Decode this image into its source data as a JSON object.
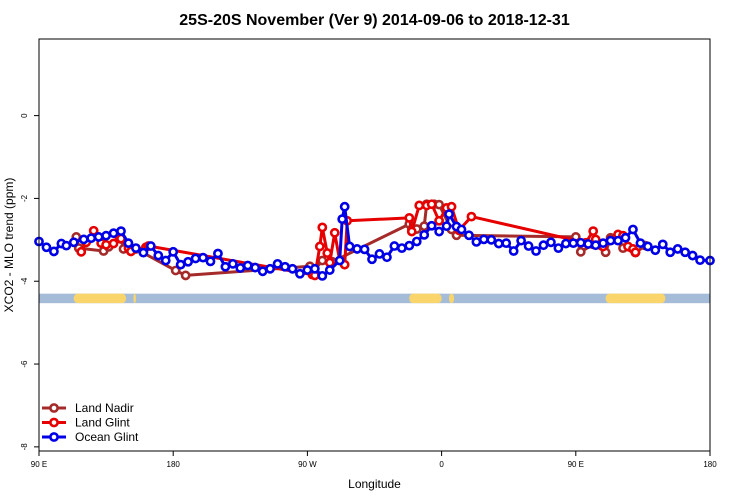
{
  "chart_data": {
    "type": "line",
    "title": "25S-20S November (Ver 9)   2014-09-06 to 2018-12-31",
    "xlabel": "Longitude",
    "ylabel": "XCO2 - MLO trend (ppm)",
    "xlim": [
      -90,
      180
    ],
    "ylim": [
      -8.1,
      1.85
    ],
    "x_ticks": [
      {
        "value": -90,
        "label": "90 E"
      },
      {
        "value": -36,
        "label": "180"
      },
      {
        "value": 18,
        "label": "90 W"
      },
      {
        "value": 72,
        "label": "0"
      },
      {
        "value": 126,
        "label": "90 E"
      },
      {
        "value": 180,
        "label": "180"
      }
    ],
    "y_ticks": [
      {
        "value": 0,
        "label": "0"
      },
      {
        "value": -2,
        "label": "-2"
      },
      {
        "value": -4,
        "label": "-4"
      },
      {
        "value": -6,
        "label": "-6"
      },
      {
        "value": -8,
        "label": "-8"
      }
    ],
    "land_mask": {
      "y_top": -4.3,
      "y_bottom": -4.53,
      "ocean_color": "#a5bcd9",
      "land_color": "#fad56b",
      "land_segments": [
        [
          -76,
          -55
        ],
        [
          -52,
          -51
        ],
        [
          59,
          72
        ],
        [
          75,
          77
        ],
        [
          138,
          162
        ]
      ]
    },
    "series": [
      {
        "name": "Land Nadir",
        "color": "#a52a2a",
        "points": [
          [
            -75,
            -2.93
          ],
          [
            -74,
            -3.2
          ],
          [
            -64,
            -3.27
          ],
          [
            -62,
            -3.17
          ],
          [
            -57,
            -2.98
          ],
          [
            -56,
            -3.22
          ],
          [
            -51,
            -3.22
          ],
          [
            -35,
            -3.74
          ],
          [
            -31,
            -3.86
          ],
          [
            19,
            -3.64
          ],
          [
            20,
            -3.79
          ],
          [
            24,
            -3.5
          ],
          [
            28,
            -3.53
          ],
          [
            59,
            -2.62
          ],
          [
            60,
            -2.74
          ],
          [
            62,
            -2.74
          ],
          [
            65,
            -2.67
          ],
          [
            66,
            -2.14
          ],
          [
            69,
            -2.14
          ],
          [
            71,
            -2.15
          ],
          [
            76,
            -2.75
          ],
          [
            78,
            -2.89
          ],
          [
            126,
            -2.93
          ],
          [
            128,
            -3.29
          ],
          [
            133,
            -3.11
          ],
          [
            138,
            -3.3
          ],
          [
            140,
            -2.95
          ],
          [
            143,
            -2.9
          ],
          [
            145,
            -3.2
          ],
          [
            150,
            -3.31
          ],
          [
            154,
            -3.14
          ]
        ]
      },
      {
        "name": "Land Glint",
        "color": "#e60000",
        "points": [
          [
            -73,
            -3.29
          ],
          [
            -71,
            -3.06
          ],
          [
            -68,
            -2.78
          ],
          [
            -65,
            -3.08
          ],
          [
            -63,
            -3.12
          ],
          [
            -60,
            -3.09
          ],
          [
            -58,
            -2.9
          ],
          [
            -57,
            -2.97
          ],
          [
            -54,
            -3.2
          ],
          [
            -53,
            -3.28
          ],
          [
            -47,
            -3.18
          ],
          [
            -46,
            -3.15
          ],
          [
            20,
            -3.84
          ],
          [
            21,
            -3.86
          ],
          [
            23,
            -3.16
          ],
          [
            24,
            -2.7
          ],
          [
            26,
            -3.32
          ],
          [
            27,
            -3.55
          ],
          [
            29,
            -2.83
          ],
          [
            31,
            -3.5
          ],
          [
            33,
            -3.6
          ],
          [
            34,
            -2.54
          ],
          [
            59,
            -2.47
          ],
          [
            60,
            -2.8
          ],
          [
            63,
            -2.17
          ],
          [
            66,
            -2.17
          ],
          [
            68,
            -2.14
          ],
          [
            71,
            -2.54
          ],
          [
            74,
            -2.23
          ],
          [
            76,
            -2.2
          ],
          [
            79,
            -2.77
          ],
          [
            84,
            -2.44
          ],
          [
            130,
            -3.07
          ],
          [
            133,
            -2.79
          ],
          [
            134,
            -2.99
          ],
          [
            137,
            -3.16
          ],
          [
            140,
            -3.01
          ],
          [
            143,
            -2.87
          ],
          [
            145,
            -2.9
          ],
          [
            147,
            -3.16
          ],
          [
            149,
            -3.22
          ],
          [
            150,
            -3.3
          ]
        ]
      },
      {
        "name": "Ocean Glint",
        "color": "#0000e6",
        "points": [
          [
            -90,
            -3.04
          ],
          [
            -87,
            -3.18
          ],
          [
            -84,
            -3.28
          ],
          [
            -81,
            -3.09
          ],
          [
            -79,
            -3.14
          ],
          [
            -76,
            -3.06
          ],
          [
            -72,
            -2.99
          ],
          [
            -69,
            -2.96
          ],
          [
            -66,
            -2.93
          ],
          [
            -63,
            -2.9
          ],
          [
            -60,
            -2.84
          ],
          [
            -57,
            -2.79
          ],
          [
            -54,
            -3.08
          ],
          [
            -51,
            -3.2
          ],
          [
            -48,
            -3.31
          ],
          [
            -45,
            -3.15
          ],
          [
            -42,
            -3.38
          ],
          [
            -39,
            -3.5
          ],
          [
            -36,
            -3.29
          ],
          [
            -33,
            -3.6
          ],
          [
            -30,
            -3.53
          ],
          [
            -27,
            -3.45
          ],
          [
            -24,
            -3.43
          ],
          [
            -21,
            -3.52
          ],
          [
            -18,
            -3.33
          ],
          [
            -15,
            -3.65
          ],
          [
            -12,
            -3.58
          ],
          [
            -9,
            -3.68
          ],
          [
            -6,
            -3.62
          ],
          [
            -3,
            -3.67
          ],
          [
            0,
            -3.76
          ],
          [
            3,
            -3.7
          ],
          [
            6,
            -3.58
          ],
          [
            9,
            -3.65
          ],
          [
            12,
            -3.7
          ],
          [
            15,
            -3.82
          ],
          [
            18,
            -3.73
          ],
          [
            21,
            -3.7
          ],
          [
            24,
            -3.87
          ],
          [
            27,
            -3.73
          ],
          [
            31,
            -3.5
          ],
          [
            32,
            -2.5
          ],
          [
            33,
            -2.2
          ],
          [
            35,
            -3.16
          ],
          [
            38,
            -3.22
          ],
          [
            41,
            -3.23
          ],
          [
            44,
            -3.47
          ],
          [
            47,
            -3.34
          ],
          [
            50,
            -3.42
          ],
          [
            53,
            -3.15
          ],
          [
            56,
            -3.2
          ],
          [
            59,
            -3.14
          ],
          [
            62,
            -3.04
          ],
          [
            65,
            -2.88
          ],
          [
            68,
            -2.66
          ],
          [
            71,
            -2.8
          ],
          [
            74,
            -2.67
          ],
          [
            75,
            -2.38
          ],
          [
            78,
            -2.68
          ],
          [
            80,
            -2.75
          ],
          [
            83,
            -2.89
          ],
          [
            86,
            -3.05
          ],
          [
            89,
            -2.99
          ],
          [
            92,
            -3.0
          ],
          [
            95,
            -3.09
          ],
          [
            98,
            -3.08
          ],
          [
            101,
            -3.27
          ],
          [
            104,
            -3.02
          ],
          [
            107,
            -3.15
          ],
          [
            110,
            -3.27
          ],
          [
            113,
            -3.13
          ],
          [
            116,
            -3.06
          ],
          [
            119,
            -3.2
          ],
          [
            122,
            -3.09
          ],
          [
            125,
            -3.08
          ],
          [
            128,
            -3.07
          ],
          [
            131,
            -3.1
          ],
          [
            134,
            -3.13
          ],
          [
            137,
            -3.08
          ],
          [
            140,
            -3.02
          ],
          [
            143,
            -3.02
          ],
          [
            146,
            -2.95
          ],
          [
            149,
            -2.75
          ],
          [
            152,
            -3.08
          ],
          [
            155,
            -3.16
          ],
          [
            158,
            -3.25
          ],
          [
            161,
            -3.11
          ],
          [
            164,
            -3.3
          ],
          [
            167,
            -3.22
          ],
          [
            170,
            -3.3
          ],
          [
            173,
            -3.38
          ],
          [
            176,
            -3.49
          ],
          [
            180,
            -3.5
          ]
        ]
      }
    ],
    "legend": {
      "position": "bottom-left",
      "entries": [
        "Land Nadir",
        "Land Glint",
        "Ocean Glint"
      ]
    }
  }
}
